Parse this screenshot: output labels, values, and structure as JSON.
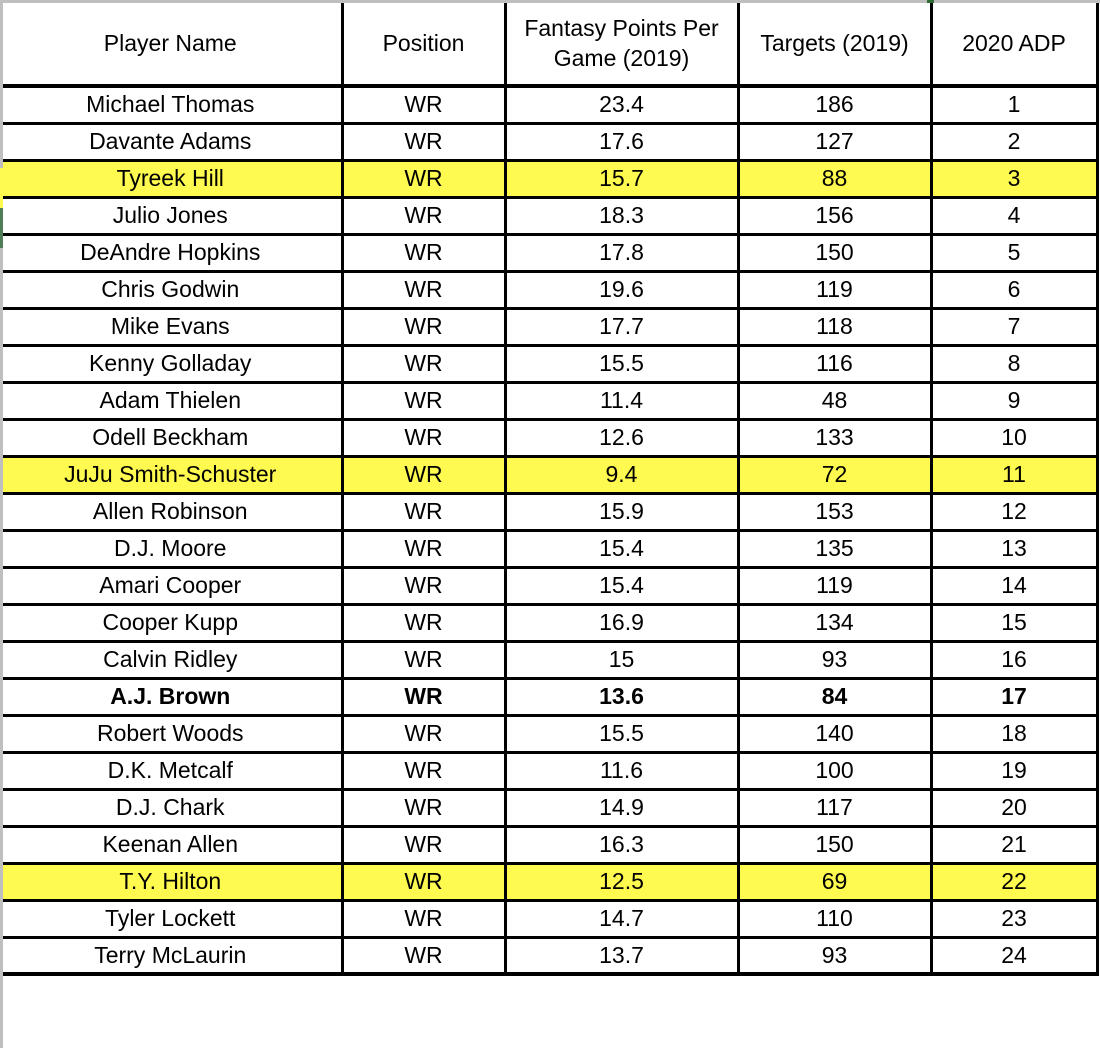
{
  "table": {
    "columns": [
      {
        "id": "player",
        "label": "Player Name"
      },
      {
        "id": "position",
        "label": "Position"
      },
      {
        "id": "fppg",
        "label": "Fantasy Points Per Game (2019)"
      },
      {
        "id": "targets",
        "label": "Targets (2019)"
      },
      {
        "id": "adp",
        "label": "2020 ADP"
      }
    ],
    "rows": [
      {
        "player": "Michael Thomas",
        "position": "WR",
        "fppg": "23.4",
        "targets": "186",
        "adp": "1",
        "highlight": false,
        "bold": false
      },
      {
        "player": "Davante Adams",
        "position": "WR",
        "fppg": "17.6",
        "targets": "127",
        "adp": "2",
        "highlight": false,
        "bold": false
      },
      {
        "player": "Tyreek Hill",
        "position": "WR",
        "fppg": "15.7",
        "targets": "88",
        "adp": "3",
        "highlight": true,
        "bold": false
      },
      {
        "player": "Julio Jones",
        "position": "WR",
        "fppg": "18.3",
        "targets": "156",
        "adp": "4",
        "highlight": false,
        "bold": false
      },
      {
        "player": "DeAndre Hopkins",
        "position": "WR",
        "fppg": "17.8",
        "targets": "150",
        "adp": "5",
        "highlight": false,
        "bold": false
      },
      {
        "player": "Chris Godwin",
        "position": "WR",
        "fppg": "19.6",
        "targets": "119",
        "adp": "6",
        "highlight": false,
        "bold": false
      },
      {
        "player": "Mike Evans",
        "position": "WR",
        "fppg": "17.7",
        "targets": "118",
        "adp": "7",
        "highlight": false,
        "bold": false
      },
      {
        "player": "Kenny Golladay",
        "position": "WR",
        "fppg": "15.5",
        "targets": "116",
        "adp": "8",
        "highlight": false,
        "bold": false
      },
      {
        "player": "Adam Thielen",
        "position": "WR",
        "fppg": "11.4",
        "targets": "48",
        "adp": "9",
        "highlight": false,
        "bold": false
      },
      {
        "player": "Odell Beckham",
        "position": "WR",
        "fppg": "12.6",
        "targets": "133",
        "adp": "10",
        "highlight": false,
        "bold": false
      },
      {
        "player": "JuJu Smith-Schuster",
        "position": "WR",
        "fppg": "9.4",
        "targets": "72",
        "adp": "11",
        "highlight": true,
        "bold": false
      },
      {
        "player": "Allen Robinson",
        "position": "WR",
        "fppg": "15.9",
        "targets": "153",
        "adp": "12",
        "highlight": false,
        "bold": false
      },
      {
        "player": "D.J. Moore",
        "position": "WR",
        "fppg": "15.4",
        "targets": "135",
        "adp": "13",
        "highlight": false,
        "bold": false
      },
      {
        "player": "Amari Cooper",
        "position": "WR",
        "fppg": "15.4",
        "targets": "119",
        "adp": "14",
        "highlight": false,
        "bold": false
      },
      {
        "player": "Cooper Kupp",
        "position": "WR",
        "fppg": "16.9",
        "targets": "134",
        "adp": "15",
        "highlight": false,
        "bold": false
      },
      {
        "player": "Calvin Ridley",
        "position": "WR",
        "fppg": "15",
        "targets": "93",
        "adp": "16",
        "highlight": false,
        "bold": false
      },
      {
        "player": "A.J. Brown",
        "position": "WR",
        "fppg": "13.6",
        "targets": "84",
        "adp": "17",
        "highlight": false,
        "bold": true
      },
      {
        "player": "Robert Woods",
        "position": "WR",
        "fppg": "15.5",
        "targets": "140",
        "adp": "18",
        "highlight": false,
        "bold": false
      },
      {
        "player": "D.K. Metcalf",
        "position": "WR",
        "fppg": "11.6",
        "targets": "100",
        "adp": "19",
        "highlight": false,
        "bold": false
      },
      {
        "player": "D.J. Chark",
        "position": "WR",
        "fppg": "14.9",
        "targets": "117",
        "adp": "20",
        "highlight": false,
        "bold": false
      },
      {
        "player": "Keenan Allen",
        "position": "WR",
        "fppg": "16.3",
        "targets": "150",
        "adp": "21",
        "highlight": false,
        "bold": false
      },
      {
        "player": "T.Y. Hilton",
        "position": "WR",
        "fppg": "12.5",
        "targets": "69",
        "adp": "22",
        "highlight": true,
        "bold": false
      },
      {
        "player": "Tyler Lockett",
        "position": "WR",
        "fppg": "14.7",
        "targets": "110",
        "adp": "23",
        "highlight": false,
        "bold": false
      },
      {
        "player": "Terry McLaurin",
        "position": "WR",
        "fppg": "13.7",
        "targets": "93",
        "adp": "24",
        "highlight": false,
        "bold": false
      }
    ]
  },
  "colors": {
    "highlight_yellow": "#FFFA50",
    "border_black": "#000000",
    "edge_gray": "#BFBFBF",
    "selection_tick_green": "#2F6B35",
    "active_cell_green": "#4F7D58"
  }
}
